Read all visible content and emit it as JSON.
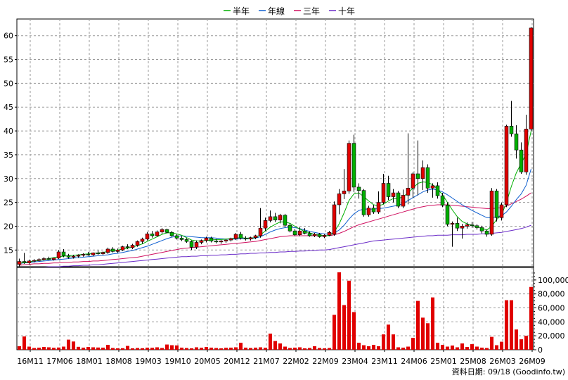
{
  "chart_data": {
    "type": "candlestick",
    "legend": [
      {
        "name": "半年",
        "color": "#00b000"
      },
      {
        "name": "年線",
        "color": "#1060d0"
      },
      {
        "name": "三年",
        "color": "#d01060"
      },
      {
        "name": "十年",
        "color": "#6a2bc8"
      }
    ],
    "legend_placement": "top-center",
    "grid": true,
    "price_axis": {
      "ticks": [
        15,
        20,
        25,
        30,
        35,
        40,
        45,
        50,
        55,
        60
      ],
      "ylim": [
        11.5,
        63.5
      ],
      "side": "left"
    },
    "volume_axis": {
      "ticks": [
        "0",
        "20,000",
        "40,000",
        "60,000",
        "80,000",
        "100,000"
      ],
      "tick_values": [
        0,
        20000,
        40000,
        60000,
        80000,
        100000
      ],
      "ylim": [
        0,
        118000
      ],
      "side": "right"
    },
    "x_labels": [
      "16M11",
      "17M06",
      "18M01",
      "18M08",
      "19M03",
      "19M10",
      "20M05",
      "20M12",
      "21M07",
      "22M02",
      "22M09",
      "23M04",
      "23M11",
      "24M06",
      "25M01",
      "25M08",
      "26M03",
      "26M09"
    ],
    "candles": [
      {
        "o": 12.0,
        "h": 13.2,
        "l": 11.6,
        "c": 12.6
      },
      {
        "o": 12.6,
        "h": 14.4,
        "l": 12.1,
        "c": 12.3
      },
      {
        "o": 12.3,
        "h": 13.0,
        "l": 12.0,
        "c": 12.7
      },
      {
        "o": 12.7,
        "h": 13.1,
        "l": 12.4,
        "c": 12.8
      },
      {
        "o": 12.8,
        "h": 13.3,
        "l": 12.6,
        "c": 13.0
      },
      {
        "o": 13.0,
        "h": 13.5,
        "l": 12.8,
        "c": 13.2
      },
      {
        "o": 13.2,
        "h": 13.6,
        "l": 12.9,
        "c": 13.0
      },
      {
        "o": 13.0,
        "h": 13.4,
        "l": 12.8,
        "c": 13.3
      },
      {
        "o": 13.3,
        "h": 15.0,
        "l": 13.1,
        "c": 14.6
      },
      {
        "o": 14.6,
        "h": 15.2,
        "l": 13.5,
        "c": 13.8
      },
      {
        "o": 13.8,
        "h": 14.2,
        "l": 13.2,
        "c": 13.5
      },
      {
        "o": 13.5,
        "h": 14.0,
        "l": 13.2,
        "c": 13.7
      },
      {
        "o": 13.7,
        "h": 14.1,
        "l": 13.4,
        "c": 13.9
      },
      {
        "o": 13.9,
        "h": 14.3,
        "l": 13.6,
        "c": 14.1
      },
      {
        "o": 14.1,
        "h": 14.6,
        "l": 13.8,
        "c": 14.0
      },
      {
        "o": 14.0,
        "h": 14.5,
        "l": 13.7,
        "c": 14.4
      },
      {
        "o": 14.4,
        "h": 14.9,
        "l": 14.0,
        "c": 14.2
      },
      {
        "o": 14.2,
        "h": 14.7,
        "l": 13.9,
        "c": 14.5
      },
      {
        "o": 14.5,
        "h": 15.5,
        "l": 14.2,
        "c": 15.2
      },
      {
        "o": 15.2,
        "h": 15.6,
        "l": 14.5,
        "c": 14.7
      },
      {
        "o": 14.7,
        "h": 15.3,
        "l": 14.4,
        "c": 15.0
      },
      {
        "o": 15.0,
        "h": 15.9,
        "l": 14.8,
        "c": 15.7
      },
      {
        "o": 15.7,
        "h": 16.2,
        "l": 15.2,
        "c": 15.5
      },
      {
        "o": 15.5,
        "h": 16.3,
        "l": 15.2,
        "c": 16.0
      },
      {
        "o": 16.0,
        "h": 17.0,
        "l": 15.7,
        "c": 16.8
      },
      {
        "o": 16.8,
        "h": 17.6,
        "l": 16.3,
        "c": 17.3
      },
      {
        "o": 17.3,
        "h": 18.8,
        "l": 17.0,
        "c": 18.4
      },
      {
        "o": 18.4,
        "h": 19.0,
        "l": 17.6,
        "c": 18.0
      },
      {
        "o": 18.0,
        "h": 19.1,
        "l": 17.8,
        "c": 18.8
      },
      {
        "o": 18.8,
        "h": 19.6,
        "l": 18.4,
        "c": 19.3
      },
      {
        "o": 19.3,
        "h": 19.5,
        "l": 18.5,
        "c": 18.7
      },
      {
        "o": 18.7,
        "h": 19.0,
        "l": 17.8,
        "c": 18.0
      },
      {
        "o": 18.0,
        "h": 18.3,
        "l": 17.2,
        "c": 17.5
      },
      {
        "o": 17.5,
        "h": 17.9,
        "l": 16.9,
        "c": 17.2
      },
      {
        "o": 17.2,
        "h": 17.5,
        "l": 16.5,
        "c": 16.8
      },
      {
        "o": 16.8,
        "h": 17.0,
        "l": 15.0,
        "c": 15.6
      },
      {
        "o": 15.6,
        "h": 17.0,
        "l": 15.2,
        "c": 16.6
      },
      {
        "o": 16.6,
        "h": 17.2,
        "l": 16.2,
        "c": 17.0
      },
      {
        "o": 17.0,
        "h": 17.8,
        "l": 16.6,
        "c": 17.5
      },
      {
        "o": 17.5,
        "h": 17.8,
        "l": 16.6,
        "c": 16.9
      },
      {
        "o": 16.9,
        "h": 17.3,
        "l": 16.4,
        "c": 16.7
      },
      {
        "o": 16.7,
        "h": 17.1,
        "l": 16.3,
        "c": 16.9
      },
      {
        "o": 16.9,
        "h": 17.3,
        "l": 16.5,
        "c": 17.1
      },
      {
        "o": 17.1,
        "h": 17.6,
        "l": 16.8,
        "c": 17.4
      },
      {
        "o": 17.4,
        "h": 18.6,
        "l": 17.1,
        "c": 18.3
      },
      {
        "o": 18.3,
        "h": 18.8,
        "l": 17.2,
        "c": 17.5
      },
      {
        "o": 17.5,
        "h": 17.9,
        "l": 17.0,
        "c": 17.3
      },
      {
        "o": 17.3,
        "h": 17.8,
        "l": 17.0,
        "c": 17.6
      },
      {
        "o": 17.6,
        "h": 18.2,
        "l": 17.3,
        "c": 18.0
      },
      {
        "o": 18.0,
        "h": 23.8,
        "l": 17.6,
        "c": 19.6
      },
      {
        "o": 19.6,
        "h": 21.8,
        "l": 19.0,
        "c": 21.2
      },
      {
        "o": 21.2,
        "h": 23.3,
        "l": 20.8,
        "c": 22.0
      },
      {
        "o": 22.0,
        "h": 22.8,
        "l": 20.9,
        "c": 21.3
      },
      {
        "o": 21.3,
        "h": 22.6,
        "l": 20.6,
        "c": 22.3
      },
      {
        "o": 22.3,
        "h": 22.6,
        "l": 19.8,
        "c": 20.2
      },
      {
        "o": 20.2,
        "h": 20.6,
        "l": 18.7,
        "c": 19.0
      },
      {
        "o": 19.0,
        "h": 19.4,
        "l": 17.9,
        "c": 18.2
      },
      {
        "o": 18.2,
        "h": 19.8,
        "l": 17.9,
        "c": 19.0
      },
      {
        "o": 19.0,
        "h": 19.6,
        "l": 18.3,
        "c": 18.5
      },
      {
        "o": 18.5,
        "h": 18.9,
        "l": 17.8,
        "c": 18.0
      },
      {
        "o": 18.0,
        "h": 18.6,
        "l": 17.7,
        "c": 18.3
      },
      {
        "o": 18.3,
        "h": 18.6,
        "l": 17.6,
        "c": 17.8
      },
      {
        "o": 17.8,
        "h": 18.3,
        "l": 17.5,
        "c": 18.1
      },
      {
        "o": 18.1,
        "h": 19.0,
        "l": 17.9,
        "c": 18.7
      },
      {
        "o": 18.3,
        "h": 25.2,
        "l": 18.0,
        "c": 24.5
      },
      {
        "o": 24.5,
        "h": 27.8,
        "l": 22.5,
        "c": 26.8
      },
      {
        "o": 26.8,
        "h": 32.0,
        "l": 25.7,
        "c": 27.4
      },
      {
        "o": 27.4,
        "h": 38.0,
        "l": 26.8,
        "c": 37.4
      },
      {
        "o": 37.4,
        "h": 39.2,
        "l": 27.2,
        "c": 28.2
      },
      {
        "o": 28.2,
        "h": 29.0,
        "l": 25.8,
        "c": 27.5
      },
      {
        "o": 27.5,
        "h": 27.8,
        "l": 22.0,
        "c": 22.4
      },
      {
        "o": 22.4,
        "h": 24.3,
        "l": 22.0,
        "c": 23.8
      },
      {
        "o": 23.8,
        "h": 24.5,
        "l": 22.6,
        "c": 23.0
      },
      {
        "o": 23.0,
        "h": 27.3,
        "l": 22.6,
        "c": 25.0
      },
      {
        "o": 25.0,
        "h": 31.0,
        "l": 24.6,
        "c": 29.0
      },
      {
        "o": 29.0,
        "h": 30.6,
        "l": 25.5,
        "c": 26.2
      },
      {
        "o": 26.2,
        "h": 27.8,
        "l": 25.0,
        "c": 27.0
      },
      {
        "o": 27.0,
        "h": 27.4,
        "l": 23.8,
        "c": 24.2
      },
      {
        "o": 24.2,
        "h": 27.7,
        "l": 23.8,
        "c": 26.5
      },
      {
        "o": 26.5,
        "h": 39.5,
        "l": 24.6,
        "c": 28.0
      },
      {
        "o": 28.0,
        "h": 31.3,
        "l": 26.0,
        "c": 31.0
      },
      {
        "o": 31.0,
        "h": 38.0,
        "l": 26.5,
        "c": 30.0
      },
      {
        "o": 30.0,
        "h": 33.8,
        "l": 27.6,
        "c": 32.3
      },
      {
        "o": 32.3,
        "h": 33.0,
        "l": 27.0,
        "c": 28.0
      },
      {
        "o": 28.0,
        "h": 29.0,
        "l": 26.0,
        "c": 28.5
      },
      {
        "o": 28.5,
        "h": 29.2,
        "l": 25.8,
        "c": 26.4
      },
      {
        "o": 26.4,
        "h": 27.0,
        "l": 24.0,
        "c": 24.4
      },
      {
        "o": 24.4,
        "h": 25.0,
        "l": 20.0,
        "c": 20.4
      },
      {
        "o": 20.4,
        "h": 21.0,
        "l": 15.7,
        "c": 20.6
      },
      {
        "o": 20.6,
        "h": 21.8,
        "l": 19.0,
        "c": 19.6
      },
      {
        "o": 19.6,
        "h": 20.5,
        "l": 17.4,
        "c": 20.0
      },
      {
        "o": 20.0,
        "h": 20.8,
        "l": 19.5,
        "c": 20.3
      },
      {
        "o": 20.3,
        "h": 20.9,
        "l": 19.7,
        "c": 20.1
      },
      {
        "o": 20.1,
        "h": 20.4,
        "l": 19.3,
        "c": 19.7
      },
      {
        "o": 19.7,
        "h": 20.1,
        "l": 18.5,
        "c": 19.0
      },
      {
        "o": 19.0,
        "h": 19.3,
        "l": 17.8,
        "c": 18.3
      },
      {
        "o": 18.3,
        "h": 28.0,
        "l": 18.0,
        "c": 27.4
      },
      {
        "o": 27.4,
        "h": 27.8,
        "l": 21.0,
        "c": 21.8
      },
      {
        "o": 21.8,
        "h": 25.0,
        "l": 21.2,
        "c": 24.5
      },
      {
        "o": 24.5,
        "h": 41.3,
        "l": 24.0,
        "c": 41.0
      },
      {
        "o": 41.0,
        "h": 46.3,
        "l": 38.8,
        "c": 39.4
      },
      {
        "o": 39.4,
        "h": 41.2,
        "l": 34.2,
        "c": 36.0
      },
      {
        "o": 36.0,
        "h": 37.6,
        "l": 31.0,
        "c": 31.4
      },
      {
        "o": 31.4,
        "h": 43.4,
        "l": 30.8,
        "c": 40.4
      },
      {
        "o": 40.4,
        "h": 61.8,
        "l": 40.0,
        "c": 61.6
      }
    ],
    "ma_half_year": [
      12.2,
      12.4,
      12.5,
      12.7,
      12.8,
      13.0,
      13.2,
      13.4,
      13.6,
      13.7,
      13.8,
      13.9,
      14.0,
      14.1,
      14.2,
      14.3,
      14.4,
      14.5,
      14.7,
      14.9,
      15.0,
      15.2,
      15.4,
      15.6,
      15.9,
      16.3,
      16.8,
      17.3,
      17.8,
      18.3,
      18.6,
      18.6,
      18.4,
      18.1,
      17.6,
      17.1,
      16.9,
      16.9,
      17.0,
      17.1,
      17.2,
      17.2,
      17.3,
      17.4,
      17.5,
      17.6,
      17.5,
      17.5,
      17.6,
      18.2,
      19.0,
      19.8,
      20.4,
      20.9,
      20.9,
      20.6,
      20.0,
      19.4,
      18.9,
      18.6,
      18.3,
      18.1,
      18.0,
      18.0,
      18.8,
      20.5,
      22.8,
      25.4,
      26.8,
      27.0,
      26.2,
      25.3,
      24.5,
      24.3,
      24.6,
      25.3,
      25.8,
      25.8,
      26.2,
      27.0,
      28.0,
      29.0,
      29.3,
      29.2,
      28.7,
      27.8,
      26.6,
      25.0,
      23.4,
      22.0,
      21.0,
      20.5,
      20.2,
      19.9,
      19.6,
      19.2,
      20.0,
      21.4,
      22.4,
      25.0,
      28.4,
      31.2,
      33.2,
      35.2,
      40.0
    ],
    "ma_year": [
      12.2,
      12.3,
      12.4,
      12.5,
      12.6,
      12.7,
      12.8,
      12.9,
      13.0,
      13.1,
      13.2,
      13.3,
      13.4,
      13.5,
      13.6,
      13.7,
      13.8,
      13.9,
      14.0,
      14.2,
      14.3,
      14.5,
      14.7,
      14.9,
      15.2,
      15.5,
      15.8,
      16.2,
      16.6,
      17.0,
      17.4,
      17.7,
      17.9,
      18.0,
      17.9,
      17.8,
      17.7,
      17.6,
      17.6,
      17.6,
      17.5,
      17.4,
      17.3,
      17.3,
      17.3,
      17.4,
      17.4,
      17.4,
      17.5,
      17.8,
      18.3,
      18.8,
      19.2,
      19.5,
      19.7,
      19.8,
      19.7,
      19.5,
      19.2,
      18.9,
      18.7,
      18.5,
      18.4,
      18.3,
      18.6,
      19.2,
      20.2,
      21.5,
      22.6,
      23.3,
      23.6,
      23.6,
      23.6,
      23.7,
      23.8,
      24.0,
      24.2,
      24.4,
      24.8,
      25.4,
      26.0,
      26.6,
      27.2,
      27.6,
      27.8,
      27.6,
      27.2,
      26.6,
      25.9,
      25.2,
      24.5,
      23.9,
      23.3,
      22.8,
      22.3,
      21.8,
      21.8,
      22.0,
      22.2,
      23.0,
      24.2,
      25.6,
      26.8,
      28.6,
      32.0
    ],
    "ma_three_year": [
      11.8,
      11.9,
      12.0,
      12.1,
      12.1,
      12.2,
      12.2,
      12.3,
      12.3,
      12.4,
      12.4,
      12.5,
      12.5,
      12.6,
      12.6,
      12.7,
      12.7,
      12.8,
      12.9,
      13.0,
      13.1,
      13.2,
      13.3,
      13.4,
      13.5,
      13.7,
      13.9,
      14.1,
      14.3,
      14.5,
      14.7,
      14.9,
      15.1,
      15.3,
      15.4,
      15.5,
      15.6,
      15.7,
      15.8,
      15.9,
      16.0,
      16.1,
      16.2,
      16.3,
      16.4,
      16.5,
      16.6,
      16.7,
      16.8,
      17.0,
      17.2,
      17.4,
      17.6,
      17.8,
      17.9,
      18.0,
      18.0,
      18.0,
      18.0,
      18.0,
      18.0,
      18.0,
      18.0,
      18.0,
      18.2,
      18.5,
      18.9,
      19.4,
      19.9,
      20.3,
      20.6,
      20.9,
      21.2,
      21.5,
      21.8,
      22.1,
      22.4,
      22.7,
      23.0,
      23.3,
      23.6,
      23.9,
      24.1,
      24.3,
      24.4,
      24.5,
      24.5,
      24.5,
      24.4,
      24.3,
      24.2,
      24.1,
      24.0,
      23.9,
      23.8,
      23.7,
      23.7,
      23.8,
      23.9,
      24.2,
      24.7,
      25.2,
      25.7,
      26.3,
      27.0
    ],
    "ma_ten_year": [
      11.3,
      11.3,
      11.3,
      11.4,
      11.4,
      11.4,
      11.5,
      11.5,
      11.5,
      11.6,
      11.6,
      11.7,
      11.7,
      11.8,
      11.8,
      11.9,
      11.9,
      12.0,
      12.1,
      12.2,
      12.3,
      12.4,
      12.5,
      12.6,
      12.7,
      12.8,
      12.9,
      13.0,
      13.1,
      13.2,
      13.3,
      13.4,
      13.5,
      13.6,
      13.6,
      13.7,
      13.7,
      13.8,
      13.8,
      13.9,
      13.9,
      14.0,
      14.0,
      14.1,
      14.1,
      14.2,
      14.2,
      14.3,
      14.3,
      14.4,
      14.4,
      14.5,
      14.5,
      14.6,
      14.6,
      14.7,
      14.7,
      14.8,
      14.8,
      14.9,
      14.9,
      15.0,
      15.0,
      15.1,
      15.3,
      15.5,
      15.7,
      15.9,
      16.1,
      16.3,
      16.5,
      16.7,
      16.9,
      17.0,
      17.1,
      17.2,
      17.3,
      17.4,
      17.5,
      17.6,
      17.7,
      17.8,
      17.9,
      18.0,
      18.0,
      18.1,
      18.1,
      18.1,
      18.2,
      18.2,
      18.2,
      18.3,
      18.3,
      18.3,
      18.4,
      18.4,
      18.5,
      18.6,
      18.7,
      18.9,
      19.1,
      19.3,
      19.5,
      19.8,
      20.2
    ],
    "volume": [
      5000,
      19000,
      4500,
      2500,
      3000,
      4000,
      3500,
      2800,
      3200,
      4500,
      14500,
      11800,
      4200,
      3000,
      4000,
      3500,
      3200,
      3000,
      7000,
      2500,
      2000,
      2200,
      5500,
      2000,
      2500,
      2200,
      3000,
      2800,
      3500,
      2500,
      7500,
      6500,
      6200,
      3000,
      2500,
      2000,
      3500,
      2800,
      4000,
      3000,
      2500,
      2000,
      2800,
      3000,
      3500,
      10000,
      3000,
      2500,
      3000,
      3500,
      2800,
      23000,
      12500,
      9000,
      4500,
      2500,
      3000,
      3500,
      2000,
      2500,
      5000,
      2500,
      2000,
      2500,
      50000,
      111000,
      64000,
      99000,
      54000,
      10000,
      6500,
      5000,
      7000,
      5000,
      22000,
      36000,
      22000,
      3500,
      3000,
      4500,
      17000,
      70000,
      46000,
      38000,
      75000,
      10000,
      7000,
      4500,
      6000,
      3500,
      9000,
      4000,
      8000,
      4500,
      3000,
      2500,
      18500,
      6500,
      11500,
      71000,
      71000,
      29000,
      15000,
      20000,
      90000
    ]
  },
  "footer": {
    "source": "資料日期: 09/18 (Goodinfo.tw)"
  }
}
